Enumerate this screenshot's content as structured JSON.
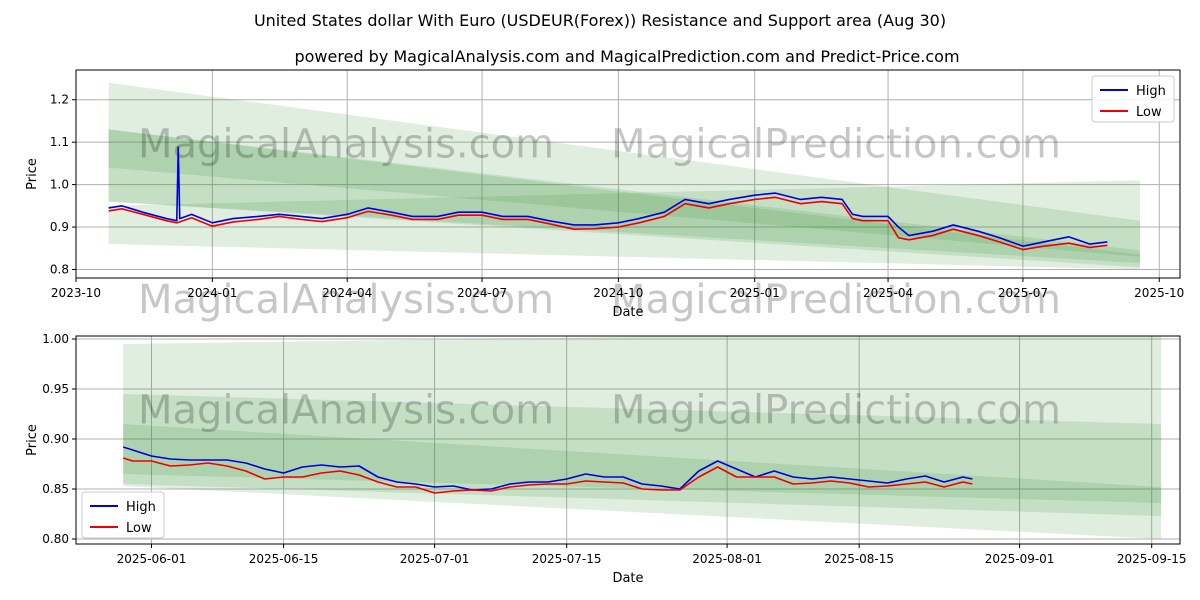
{
  "title": "United States dollar With Euro (USDEUR(Forex)) Resistance and Support area (Aug 30)",
  "subtitle": "powered by MagicalAnalysis.com and MagicalPrediction.com and Predict-Price.com",
  "watermarks": [
    "MagicalAnalysis.com",
    "MagicalPrediction.com"
  ],
  "colors": {
    "high": "#0000dd",
    "low": "#ee0000",
    "band": "#2e8b2e",
    "grid": "#b0b0b0"
  },
  "chart_data": [
    {
      "type": "line",
      "xlabel": "Date",
      "ylabel": "Price",
      "legend_position": "top-right",
      "grid": true,
      "xlim": [
        "2023-10-01",
        "2025-10-15"
      ],
      "ylim": [
        0.78,
        1.27
      ],
      "x_ticks": [
        "2023-10",
        "2024-01",
        "2024-04",
        "2024-07",
        "2024-10",
        "2025-01",
        "2025-04",
        "2025-07",
        "2025-10"
      ],
      "x_tick_dates": [
        "2023-10-01",
        "2024-01-01",
        "2024-04-01",
        "2024-07-01",
        "2024-10-01",
        "2025-01-01",
        "2025-04-01",
        "2025-07-01",
        "2025-10-01"
      ],
      "y_ticks": [
        "0.8",
        "0.9",
        "1.0",
        "1.1",
        "1.2"
      ],
      "y_tick_values": [
        0.8,
        0.9,
        1.0,
        1.1,
        1.2
      ],
      "bands": [
        {
          "x": [
            "2023-10-23",
            "2025-09-18"
          ],
          "upper": [
            1.24,
            0.915
          ],
          "lower": [
            1.04,
            0.83
          ]
        },
        {
          "x": [
            "2023-10-23",
            "2025-09-18"
          ],
          "upper": [
            1.13,
            0.835
          ],
          "lower": [
            0.96,
            0.815
          ]
        },
        {
          "x": [
            "2023-10-23",
            "2025-09-18"
          ],
          "upper": [
            1.13,
            0.845
          ],
          "lower": [
            0.96,
            0.805
          ]
        },
        {
          "x": [
            "2023-10-23",
            "2025-09-18"
          ],
          "upper": [
            0.95,
            1.01
          ],
          "lower": [
            0.86,
            0.8
          ]
        }
      ],
      "series": [
        {
          "name": "High",
          "x": [
            "2023-10-23",
            "2023-11-01",
            "2023-11-15",
            "2023-12-01",
            "2023-12-08",
            "2023-12-09",
            "2023-12-10",
            "2023-12-18",
            "2024-01-01",
            "2024-01-15",
            "2024-02-01",
            "2024-02-15",
            "2024-03-01",
            "2024-03-15",
            "2024-04-01",
            "2024-04-15",
            "2024-05-01",
            "2024-05-15",
            "2024-06-01",
            "2024-06-15",
            "2024-07-01",
            "2024-07-15",
            "2024-08-01",
            "2024-08-15",
            "2024-09-01",
            "2024-09-15",
            "2024-10-01",
            "2024-10-15",
            "2024-11-01",
            "2024-11-15",
            "2024-12-01",
            "2024-12-15",
            "2025-01-01",
            "2025-01-15",
            "2025-02-01",
            "2025-02-15",
            "2025-03-01",
            "2025-03-08",
            "2025-03-15",
            "2025-04-01",
            "2025-04-08",
            "2025-04-15",
            "2025-05-01",
            "2025-05-15",
            "2025-06-01",
            "2025-06-15",
            "2025-07-01",
            "2025-07-15",
            "2025-08-01",
            "2025-08-15",
            "2025-08-27"
          ],
          "values": [
            0.945,
            0.95,
            0.935,
            0.92,
            0.915,
            1.088,
            0.92,
            0.93,
            0.91,
            0.92,
            0.925,
            0.93,
            0.925,
            0.92,
            0.93,
            0.945,
            0.935,
            0.925,
            0.925,
            0.935,
            0.935,
            0.925,
            0.925,
            0.915,
            0.905,
            0.905,
            0.91,
            0.92,
            0.935,
            0.965,
            0.955,
            0.965,
            0.975,
            0.98,
            0.965,
            0.97,
            0.965,
            0.93,
            0.925,
            0.925,
            0.9,
            0.88,
            0.89,
            0.905,
            0.89,
            0.875,
            0.855,
            0.865,
            0.877,
            0.86,
            0.865
          ]
        },
        {
          "name": "Low",
          "x": [
            "2023-10-23",
            "2023-11-01",
            "2023-11-15",
            "2023-12-01",
            "2023-12-08",
            "2023-12-18",
            "2024-01-01",
            "2024-01-15",
            "2024-02-01",
            "2024-02-15",
            "2024-03-01",
            "2024-03-15",
            "2024-04-01",
            "2024-04-15",
            "2024-05-01",
            "2024-05-15",
            "2024-06-01",
            "2024-06-15",
            "2024-07-01",
            "2024-07-15",
            "2024-08-01",
            "2024-08-15",
            "2024-09-01",
            "2024-09-15",
            "2024-10-01",
            "2024-10-15",
            "2024-11-01",
            "2024-11-15",
            "2024-12-01",
            "2024-12-15",
            "2025-01-01",
            "2025-01-15",
            "2025-02-01",
            "2025-02-15",
            "2025-03-01",
            "2025-03-08",
            "2025-03-15",
            "2025-04-01",
            "2025-04-08",
            "2025-04-15",
            "2025-05-01",
            "2025-05-15",
            "2025-06-01",
            "2025-06-15",
            "2025-07-01",
            "2025-07-15",
            "2025-08-01",
            "2025-08-15",
            "2025-08-27"
          ],
          "values": [
            0.938,
            0.943,
            0.93,
            0.915,
            0.91,
            0.922,
            0.902,
            0.912,
            0.918,
            0.925,
            0.918,
            0.913,
            0.922,
            0.937,
            0.928,
            0.918,
            0.918,
            0.928,
            0.928,
            0.918,
            0.918,
            0.908,
            0.895,
            0.896,
            0.9,
            0.91,
            0.925,
            0.955,
            0.945,
            0.955,
            0.965,
            0.97,
            0.955,
            0.96,
            0.955,
            0.92,
            0.915,
            0.915,
            0.875,
            0.87,
            0.88,
            0.895,
            0.88,
            0.865,
            0.847,
            0.855,
            0.862,
            0.852,
            0.857
          ]
        }
      ]
    },
    {
      "type": "line",
      "xlabel": "Date",
      "ylabel": "Price",
      "legend_position": "bottom-left",
      "grid": true,
      "xlim": [
        "2025-05-24",
        "2025-09-18"
      ],
      "ylim": [
        0.795,
        1.003
      ],
      "x_ticks": [
        "2025-06-01",
        "2025-06-15",
        "2025-07-01",
        "2025-07-15",
        "2025-08-01",
        "2025-08-15",
        "2025-09-01",
        "2025-09-15"
      ],
      "x_tick_dates": [
        "2025-06-01",
        "2025-06-15",
        "2025-07-01",
        "2025-07-15",
        "2025-08-01",
        "2025-08-15",
        "2025-09-01",
        "2025-09-15"
      ],
      "y_ticks": [
        "0.80",
        "0.85",
        "0.90",
        "0.95",
        "1.00"
      ],
      "y_tick_values": [
        0.8,
        0.85,
        0.9,
        0.95,
        1.0
      ],
      "bands": [
        {
          "x": [
            "2025-05-29",
            "2025-09-16"
          ],
          "upper": [
            0.995,
            1.01
          ],
          "lower": [
            0.853,
            0.8
          ]
        },
        {
          "x": [
            "2025-05-29",
            "2025-09-16"
          ],
          "upper": [
            0.945,
            0.915
          ],
          "lower": [
            0.855,
            0.823
          ]
        },
        {
          "x": [
            "2025-05-29",
            "2025-09-16"
          ],
          "upper": [
            0.915,
            0.852
          ],
          "lower": [
            0.865,
            0.836
          ]
        }
      ],
      "series": [
        {
          "name": "High",
          "x": [
            "2025-05-29",
            "2025-05-30",
            "2025-06-01",
            "2025-06-03",
            "2025-06-05",
            "2025-06-07",
            "2025-06-09",
            "2025-06-11",
            "2025-06-13",
            "2025-06-15",
            "2025-06-17",
            "2025-06-19",
            "2025-06-21",
            "2025-06-23",
            "2025-06-25",
            "2025-06-27",
            "2025-06-29",
            "2025-07-01",
            "2025-07-03",
            "2025-07-05",
            "2025-07-07",
            "2025-07-09",
            "2025-07-11",
            "2025-07-13",
            "2025-07-15",
            "2025-07-17",
            "2025-07-19",
            "2025-07-21",
            "2025-07-23",
            "2025-07-25",
            "2025-07-27",
            "2025-07-29",
            "2025-07-31",
            "2025-08-02",
            "2025-08-04",
            "2025-08-06",
            "2025-08-08",
            "2025-08-10",
            "2025-08-12",
            "2025-08-14",
            "2025-08-16",
            "2025-08-18",
            "2025-08-20",
            "2025-08-22",
            "2025-08-24",
            "2025-08-26",
            "2025-08-27"
          ],
          "values": [
            0.892,
            0.889,
            0.883,
            0.88,
            0.879,
            0.879,
            0.879,
            0.876,
            0.87,
            0.866,
            0.872,
            0.874,
            0.872,
            0.873,
            0.862,
            0.857,
            0.855,
            0.852,
            0.853,
            0.849,
            0.85,
            0.855,
            0.857,
            0.857,
            0.86,
            0.865,
            0.862,
            0.862,
            0.855,
            0.853,
            0.85,
            0.868,
            0.878,
            0.87,
            0.862,
            0.868,
            0.862,
            0.86,
            0.862,
            0.86,
            0.858,
            0.856,
            0.86,
            0.863,
            0.857,
            0.862,
            0.86
          ]
        },
        {
          "name": "Low",
          "x": [
            "2025-05-29",
            "2025-05-30",
            "2025-06-01",
            "2025-06-03",
            "2025-06-05",
            "2025-06-07",
            "2025-06-09",
            "2025-06-11",
            "2025-06-13",
            "2025-06-15",
            "2025-06-17",
            "2025-06-19",
            "2025-06-21",
            "2025-06-23",
            "2025-06-25",
            "2025-06-27",
            "2025-06-29",
            "2025-07-01",
            "2025-07-03",
            "2025-07-05",
            "2025-07-07",
            "2025-07-09",
            "2025-07-11",
            "2025-07-13",
            "2025-07-15",
            "2025-07-17",
            "2025-07-19",
            "2025-07-21",
            "2025-07-23",
            "2025-07-25",
            "2025-07-27",
            "2025-07-29",
            "2025-07-31",
            "2025-08-02",
            "2025-08-04",
            "2025-08-06",
            "2025-08-08",
            "2025-08-10",
            "2025-08-12",
            "2025-08-14",
            "2025-08-16",
            "2025-08-18",
            "2025-08-20",
            "2025-08-22",
            "2025-08-24",
            "2025-08-26",
            "2025-08-27"
          ],
          "values": [
            0.881,
            0.878,
            0.878,
            0.873,
            0.874,
            0.876,
            0.873,
            0.868,
            0.86,
            0.862,
            0.862,
            0.866,
            0.868,
            0.864,
            0.857,
            0.852,
            0.852,
            0.846,
            0.848,
            0.849,
            0.848,
            0.852,
            0.854,
            0.855,
            0.855,
            0.858,
            0.857,
            0.856,
            0.85,
            0.849,
            0.849,
            0.862,
            0.872,
            0.862,
            0.862,
            0.862,
            0.855,
            0.856,
            0.858,
            0.856,
            0.852,
            0.853,
            0.855,
            0.857,
            0.852,
            0.857,
            0.855
          ]
        }
      ]
    }
  ]
}
